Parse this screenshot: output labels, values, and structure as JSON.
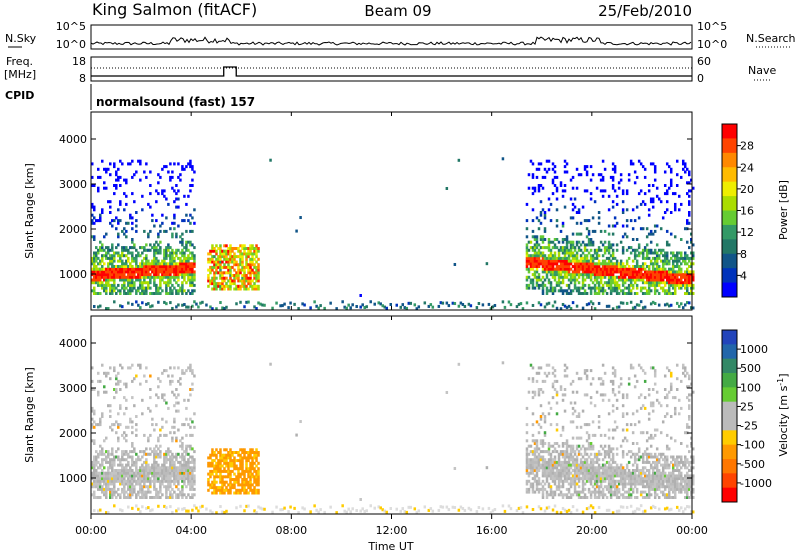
{
  "header": {
    "station": "King Salmon (fitACF)",
    "beam": "Beam 09",
    "date": "25/Feb/2010"
  },
  "strips": {
    "nsky_label": "N.Sky",
    "nsky_ticks": [
      "10^5",
      "10^0"
    ],
    "nsearch_label": "N.Search",
    "freq_label_1": "Freq.",
    "freq_label_2": "[MHz]",
    "freq_ticks": [
      "18",
      "8"
    ],
    "nave_label": "Nave",
    "nave_ticks": [
      "60",
      "0"
    ],
    "cpid_label": "CPID",
    "cpid_value": "normalsound (fast) 157"
  },
  "colorbars": {
    "power": {
      "label": "Power [dB]",
      "ticks": [
        "28",
        "24",
        "20",
        "16",
        "12",
        "8",
        "4"
      ],
      "colors": [
        "#ff0000",
        "#ff4400",
        "#ff8800",
        "#ffbb00",
        "#eeee00",
        "#aadd00",
        "#66cc33",
        "#339966",
        "#227766",
        "#115588",
        "#0033bb",
        "#0000ff"
      ]
    },
    "velocity": {
      "label": "Velocity [m s",
      "label_sup": "-1",
      "label_close": "]",
      "ticks": [
        "1000",
        "500",
        "100",
        "25",
        "-25",
        "-100",
        "-500",
        "-1000"
      ],
      "colors": [
        "#2244bb",
        "#2266aa",
        "#338866",
        "#44aa44",
        "#66cc33",
        "#bbbbbb",
        "#bbbbbb",
        "#ffcc00",
        "#ff9900",
        "#ff7700",
        "#ff4400",
        "#ff0000"
      ]
    }
  },
  "chart_data": [
    {
      "type": "heatmap",
      "name": "power",
      "ylabel": "Slant Range [km]",
      "y_ticks": [
        "4000",
        "3000",
        "2000",
        "1000"
      ],
      "ylim": [
        200,
        4600
      ],
      "colorscale": "Power [dB]",
      "vlim": [
        0,
        30
      ],
      "x_hours": [
        0,
        24
      ]
    },
    {
      "type": "heatmap",
      "name": "velocity",
      "ylabel": "Slant Range [km]",
      "y_ticks": [
        "4000",
        "3000",
        "2000",
        "1000"
      ],
      "ylim": [
        200,
        4600
      ],
      "colorscale": "Velocity [m s-1]",
      "vlim": [
        -1000,
        1000
      ],
      "x_hours": [
        0,
        24
      ]
    }
  ],
  "xaxis": {
    "label": "Time UT",
    "ticks": [
      "00:00",
      "04:00",
      "08:00",
      "12:00",
      "16:00",
      "20:00",
      "00:00"
    ]
  }
}
